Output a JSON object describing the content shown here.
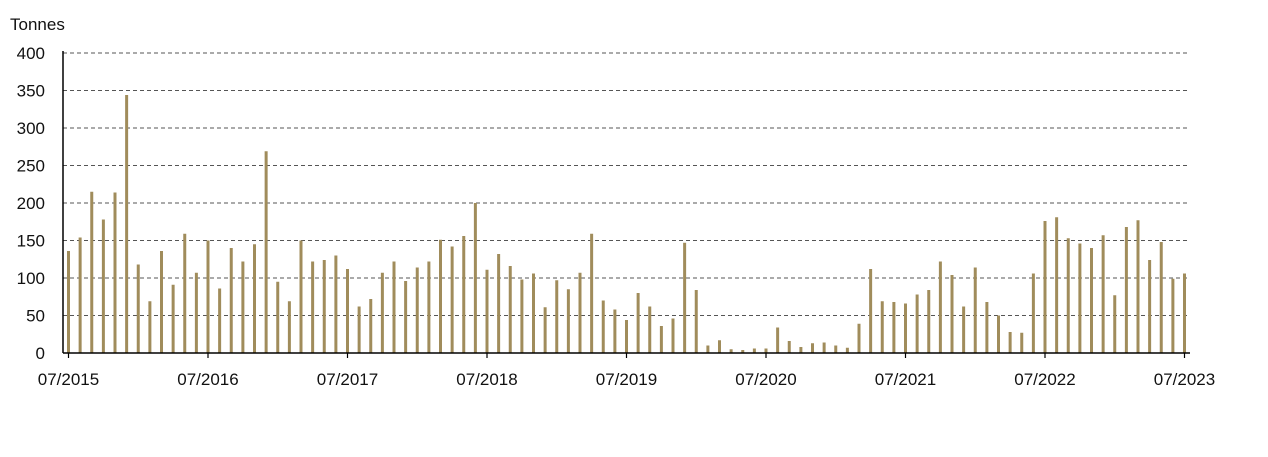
{
  "chart_data": {
    "type": "bar",
    "ylabel": "Tonnes",
    "ylim": [
      0,
      400
    ],
    "yticks": [
      0,
      50,
      100,
      150,
      200,
      250,
      300,
      350,
      400
    ],
    "xtick_labels": [
      "07/2015",
      "07/2016",
      "07/2017",
      "07/2018",
      "07/2019",
      "07/2020",
      "07/2021",
      "07/2022",
      "07/2023"
    ],
    "grid": "horizontal-dashed",
    "bar_color": "#a08c5b",
    "categories": [
      "2015-07",
      "2015-08",
      "2015-09",
      "2015-10",
      "2015-11",
      "2015-12",
      "2016-01",
      "2016-02",
      "2016-03",
      "2016-04",
      "2016-05",
      "2016-06",
      "2016-07",
      "2016-08",
      "2016-09",
      "2016-10",
      "2016-11",
      "2016-12",
      "2017-01",
      "2017-02",
      "2017-03",
      "2017-04",
      "2017-05",
      "2017-06",
      "2017-07",
      "2017-08",
      "2017-09",
      "2017-10",
      "2017-11",
      "2017-12",
      "2018-01",
      "2018-02",
      "2018-03",
      "2018-04",
      "2018-05",
      "2018-06",
      "2018-07",
      "2018-08",
      "2018-09",
      "2018-10",
      "2018-11",
      "2018-12",
      "2019-01",
      "2019-02",
      "2019-03",
      "2019-04",
      "2019-05",
      "2019-06",
      "2019-07",
      "2019-08",
      "2019-09",
      "2019-10",
      "2019-11",
      "2019-12",
      "2020-01",
      "2020-02",
      "2020-03",
      "2020-04",
      "2020-05",
      "2020-06",
      "2020-07",
      "2020-08",
      "2020-09",
      "2020-10",
      "2020-11",
      "2020-12",
      "2021-01",
      "2021-02",
      "2021-03",
      "2021-04",
      "2021-05",
      "2021-06",
      "2021-07",
      "2021-08",
      "2021-09",
      "2021-10",
      "2021-11",
      "2021-12",
      "2022-01",
      "2022-02",
      "2022-03",
      "2022-04",
      "2022-05",
      "2022-06",
      "2022-07",
      "2022-08",
      "2022-09",
      "2022-10",
      "2022-11",
      "2022-12",
      "2023-01",
      "2023-02",
      "2023-03",
      "2023-04",
      "2023-05",
      "2023-06",
      "2023-07"
    ],
    "values": [
      136,
      154,
      215,
      178,
      214,
      344,
      118,
      69,
      136,
      91,
      159,
      107,
      150,
      86,
      140,
      122,
      145,
      269,
      95,
      69,
      150,
      122,
      124,
      130,
      112,
      62,
      72,
      107,
      122,
      96,
      114,
      122,
      151,
      142,
      156,
      200,
      111,
      132,
      116,
      98,
      106,
      61,
      97,
      85,
      107,
      159,
      70,
      58,
      44,
      80,
      62,
      36,
      46,
      147,
      84,
      10,
      17,
      5,
      4,
      6,
      6,
      34,
      16,
      8,
      13,
      14,
      10,
      7,
      39,
      112,
      69,
      68,
      66,
      78,
      84,
      122,
      104,
      62,
      114,
      68,
      50,
      28,
      27,
      106,
      176,
      181,
      153,
      146,
      140,
      157,
      77,
      168,
      177,
      124,
      148,
      99,
      106
    ]
  }
}
